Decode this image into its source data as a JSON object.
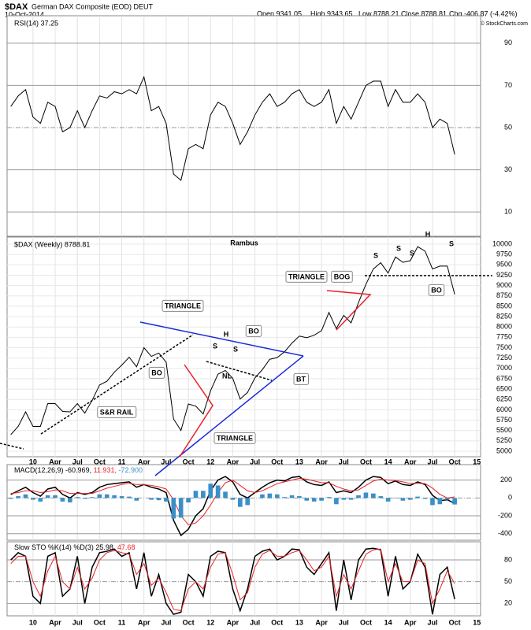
{
  "header": {
    "symbol": "$DAX",
    "name": "German DAX Composite (EOD) DEUT",
    "date": "10-Oct-2014",
    "open": "Open 9341.05",
    "high": "High 9343.65",
    "low": "Low 8788.21",
    "close": "Close 8788.81",
    "change": "Chg -406.87 (-4.42%)",
    "source": "© StockCharts.com"
  },
  "chart_data": [
    {
      "type": "line",
      "title": "RSI(14) 37.25",
      "color": "#000000",
      "values": [
        60,
        65,
        68,
        55,
        52,
        62,
        60,
        48,
        50,
        58,
        50,
        58,
        65,
        64,
        67,
        66,
        68,
        66,
        74,
        58,
        60,
        52,
        28,
        25,
        40,
        42,
        40,
        56,
        62,
        60,
        52,
        42,
        48,
        56,
        62,
        66,
        60,
        62,
        66,
        68,
        62,
        60,
        62,
        68,
        52,
        60,
        54,
        62,
        70,
        72,
        72,
        60,
        68,
        62,
        62,
        66,
        62,
        50,
        54,
        52,
        37.25
      ],
      "ylim": [
        -1.5,
        103
      ],
      "yticks": [
        10,
        30,
        50,
        70,
        90
      ],
      "xlim": [
        -0.5,
        63.5
      ],
      "xticks": [
        3,
        6,
        9,
        12,
        15,
        18,
        21,
        24,
        27,
        30,
        33,
        36,
        39,
        42,
        45,
        48,
        51,
        54,
        57,
        60,
        63
      ]
    },
    {
      "type": "line",
      "title": "$DAX (Weekly) 8788.81",
      "subtitle": "Rambus",
      "color": "#000000",
      "values": [
        5400,
        5600,
        5950,
        5600,
        5600,
        6150,
        6150,
        5960,
        5950,
        6150,
        5920,
        6230,
        6600,
        6690,
        6910,
        7080,
        7270,
        7040,
        7500,
        7290,
        7370,
        7150,
        5780,
        5500,
        6140,
        6090,
        5900,
        6460,
        6860,
        6950,
        6760,
        6260,
        6420,
        6770,
        6970,
        7220,
        7260,
        7400,
        7610,
        7780,
        7740,
        7800,
        7910,
        8350,
        7960,
        8280,
        8100,
        8590,
        9030,
        9400,
        9550,
        9300,
        9690,
        9560,
        9600,
        9940,
        9830,
        9400,
        9470,
        9470,
        8788.81
      ],
      "ylim": [
        4867,
        10171
      ],
      "yticks": [
        5000,
        5250,
        5500,
        5750,
        6000,
        6250,
        6500,
        6750,
        7000,
        7250,
        7500,
        7750,
        8000,
        8250,
        8500,
        8750,
        9000,
        9250,
        9500,
        9750,
        10000
      ],
      "xlim": [
        -0.5,
        63.5
      ],
      "xticks": [
        {
          "value": 3,
          "label": "10"
        },
        {
          "value": 6,
          "label": "Apr"
        },
        {
          "value": 9,
          "label": "Jul"
        },
        {
          "value": 12,
          "label": "Oct"
        },
        {
          "value": 15,
          "label": "11"
        },
        {
          "value": 18,
          "label": "Apr"
        },
        {
          "value": 21,
          "label": "Jul"
        },
        {
          "value": 24,
          "label": "Oct"
        },
        {
          "value": 27,
          "label": "12"
        },
        {
          "value": 30,
          "label": "Apr"
        },
        {
          "value": 33,
          "label": "Jul"
        },
        {
          "value": 36,
          "label": "Oct"
        },
        {
          "value": 39,
          "label": "13"
        },
        {
          "value": 42,
          "label": "Apr"
        },
        {
          "value": 45,
          "label": "Jul"
        },
        {
          "value": 48,
          "label": "Oct"
        },
        {
          "value": 51,
          "label": "14"
        },
        {
          "value": 54,
          "label": "Apr"
        },
        {
          "value": 57,
          "label": "Jul"
        },
        {
          "value": 60,
          "label": "Oct"
        },
        {
          "value": 63,
          "label": "15"
        }
      ],
      "annotations": [
        "TRIANGLE",
        "BO",
        "TRIANGLE",
        "BO",
        "BT",
        "H",
        "S",
        "S",
        "NL",
        "S&R RAIL",
        "TRIANGLE",
        "BOG",
        "BO",
        "H",
        "S",
        "S",
        "S",
        "S"
      ]
    },
    {
      "type": "macd",
      "title": "MACD(12,26,9)",
      "value_texts": [
        "-60.969,",
        "11.931,",
        "-72.900"
      ],
      "series": [
        {
          "color": "#000000",
          "style": "line",
          "values": [
            40,
            80,
            120,
            60,
            20,
            100,
            120,
            40,
            0,
            60,
            40,
            60,
            120,
            150,
            160,
            170,
            180,
            120,
            150,
            120,
            100,
            60,
            -250,
            -420,
            -350,
            -200,
            -120,
            80,
            200,
            240,
            180,
            40,
            0,
            60,
            120,
            170,
            200,
            190,
            230,
            240,
            180,
            150,
            140,
            180,
            60,
            80,
            60,
            120,
            200,
            240,
            230,
            160,
            190,
            150,
            140,
            180,
            150,
            30,
            -30,
            -20,
            -60.969
          ]
        },
        {
          "color": "#e8222a",
          "style": "line",
          "values": [
            50,
            60,
            80,
            80,
            60,
            70,
            90,
            80,
            50,
            50,
            50,
            50,
            80,
            110,
            130,
            150,
            165,
            150,
            150,
            140,
            125,
            100,
            -20,
            -200,
            -300,
            -280,
            -200,
            -80,
            60,
            170,
            200,
            140,
            80,
            60,
            80,
            120,
            160,
            180,
            200,
            220,
            210,
            190,
            170,
            170,
            130,
            100,
            80,
            90,
            140,
            190,
            210,
            200,
            195,
            180,
            160,
            165,
            160,
            110,
            40,
            0,
            11.931
          ]
        },
        {
          "color": "#3a8fc8",
          "style": "bar",
          "values": [
            -10,
            20,
            40,
            -20,
            -40,
            30,
            30,
            -40,
            -50,
            10,
            -10,
            10,
            40,
            40,
            30,
            20,
            15,
            -30,
            0,
            -20,
            -25,
            -40,
            -230,
            -220,
            -50,
            80,
            80,
            160,
            140,
            70,
            -20,
            -100,
            -80,
            0,
            40,
            50,
            40,
            10,
            30,
            20,
            -30,
            -40,
            -30,
            10,
            -70,
            -20,
            -20,
            30,
            60,
            50,
            20,
            -40,
            -5,
            -30,
            -20,
            15,
            -10,
            -80,
            -70,
            -20,
            -72.9
          ]
        }
      ],
      "ylim": [
        -473,
        373
      ],
      "yticks": [
        200,
        0,
        -200,
        -400
      ],
      "xlim": [
        -0.5,
        63.5
      ],
      "xticks": [
        3,
        6,
        9,
        12,
        15,
        18,
        21,
        24,
        27,
        30,
        33,
        36,
        39,
        42,
        45,
        48,
        51,
        54,
        57,
        60,
        63
      ]
    },
    {
      "type": "macd",
      "title": "Slow STO %K(14) %D(3)",
      "value_texts": [
        "25.98,",
        "47.68"
      ],
      "series": [
        {
          "color": "#000000",
          "style": "line",
          "values": [
            80,
            90,
            85,
            30,
            20,
            85,
            90,
            30,
            40,
            85,
            20,
            70,
            90,
            92,
            95,
            85,
            90,
            40,
            90,
            30,
            60,
            20,
            5,
            8,
            60,
            50,
            30,
            85,
            92,
            90,
            40,
            10,
            40,
            85,
            92,
            95,
            80,
            85,
            95,
            94,
            70,
            60,
            75,
            90,
            10,
            80,
            25,
            80,
            95,
            96,
            94,
            30,
            85,
            40,
            50,
            88,
            70,
            5,
            60,
            70,
            25.98
          ]
        },
        {
          "color": "#e8222a",
          "style": "line",
          "values": [
            75,
            85,
            85,
            50,
            30,
            65,
            85,
            50,
            40,
            70,
            40,
            55,
            80,
            90,
            93,
            90,
            88,
            60,
            75,
            45,
            55,
            35,
            12,
            10,
            40,
            50,
            40,
            70,
            88,
            90,
            60,
            25,
            35,
            70,
            88,
            93,
            85,
            85,
            90,
            93,
            80,
            65,
            70,
            85,
            30,
            60,
            40,
            65,
            88,
            94,
            95,
            50,
            75,
            50,
            50,
            80,
            75,
            20,
            40,
            65,
            47.68
          ]
        }
      ],
      "ylim": [
        3,
        105
      ],
      "yticks": [
        20,
        50,
        80
      ],
      "xlim": [
        -0.5,
        63.5
      ],
      "xticks": [
        {
          "value": 3,
          "label": "10"
        },
        {
          "value": 6,
          "label": "Apr"
        },
        {
          "value": 9,
          "label": "Jul"
        },
        {
          "value": 12,
          "label": "Oct"
        },
        {
          "value": 15,
          "label": "11"
        },
        {
          "value": 18,
          "label": "Apr"
        },
        {
          "value": 21,
          "label": "Jul"
        },
        {
          "value": 24,
          "label": "Oct"
        },
        {
          "value": 27,
          "label": "12"
        },
        {
          "value": 30,
          "label": "Apr"
        },
        {
          "value": 33,
          "label": "Jul"
        },
        {
          "value": 36,
          "label": "Oct"
        },
        {
          "value": 39,
          "label": "13"
        },
        {
          "value": 42,
          "label": "Apr"
        },
        {
          "value": 45,
          "label": "Jul"
        },
        {
          "value": 48,
          "label": "Oct"
        },
        {
          "value": 51,
          "label": "14"
        },
        {
          "value": 54,
          "label": "Apr"
        },
        {
          "value": 57,
          "label": "Jul"
        },
        {
          "value": 60,
          "label": "Oct"
        },
        {
          "value": 63,
          "label": "15"
        }
      ]
    }
  ]
}
